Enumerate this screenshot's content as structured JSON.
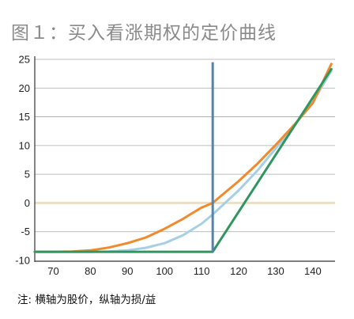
{
  "chart_data": {
    "type": "line",
    "title": "图１：买入看涨期权的定价曲线",
    "note": "注: 横轴为股价，纵轴为损/益",
    "xlim": [
      65,
      146
    ],
    "ylim": [
      -10,
      25
    ],
    "xticks": [
      70,
      80,
      90,
      100,
      110,
      120,
      130,
      140
    ],
    "yticks": [
      25,
      20,
      15,
      10,
      5,
      0,
      -5,
      -10
    ],
    "grid": "horizontal",
    "zero_line": 0,
    "vertical_marker": {
      "x": 113,
      "y_from": -8.5,
      "y_to": 24.5,
      "color": "#5a82a6"
    },
    "series": [
      {
        "color": "#2f9660",
        "x": [
          65,
          113,
          145
        ],
        "y": [
          -8.5,
          -8.5,
          23.3
        ]
      },
      {
        "color": "#f08a2c",
        "x": [
          65,
          70,
          75,
          80,
          85,
          90,
          95,
          100,
          105,
          110,
          113,
          115,
          120,
          125,
          130,
          135,
          140,
          145
        ],
        "y": [
          -8.5,
          -8.5,
          -8.45,
          -8.25,
          -7.75,
          -7.0,
          -6.0,
          -4.5,
          -2.75,
          -0.8,
          0.0,
          1.1,
          3.8,
          6.8,
          10.1,
          13.6,
          17.4,
          24.2
        ]
      },
      {
        "color": "#a6cfe6",
        "x": [
          65,
          70,
          75,
          80,
          85,
          90,
          95,
          100,
          105,
          110,
          113,
          115,
          120,
          125,
          130,
          135,
          140,
          145
        ],
        "y": [
          -8.5,
          -8.5,
          -8.5,
          -8.5,
          -8.45,
          -8.25,
          -7.8,
          -7.0,
          -5.6,
          -3.6,
          -2.0,
          -0.8,
          2.2,
          5.6,
          9.5,
          13.5,
          17.6,
          23.0
        ]
      }
    ]
  }
}
